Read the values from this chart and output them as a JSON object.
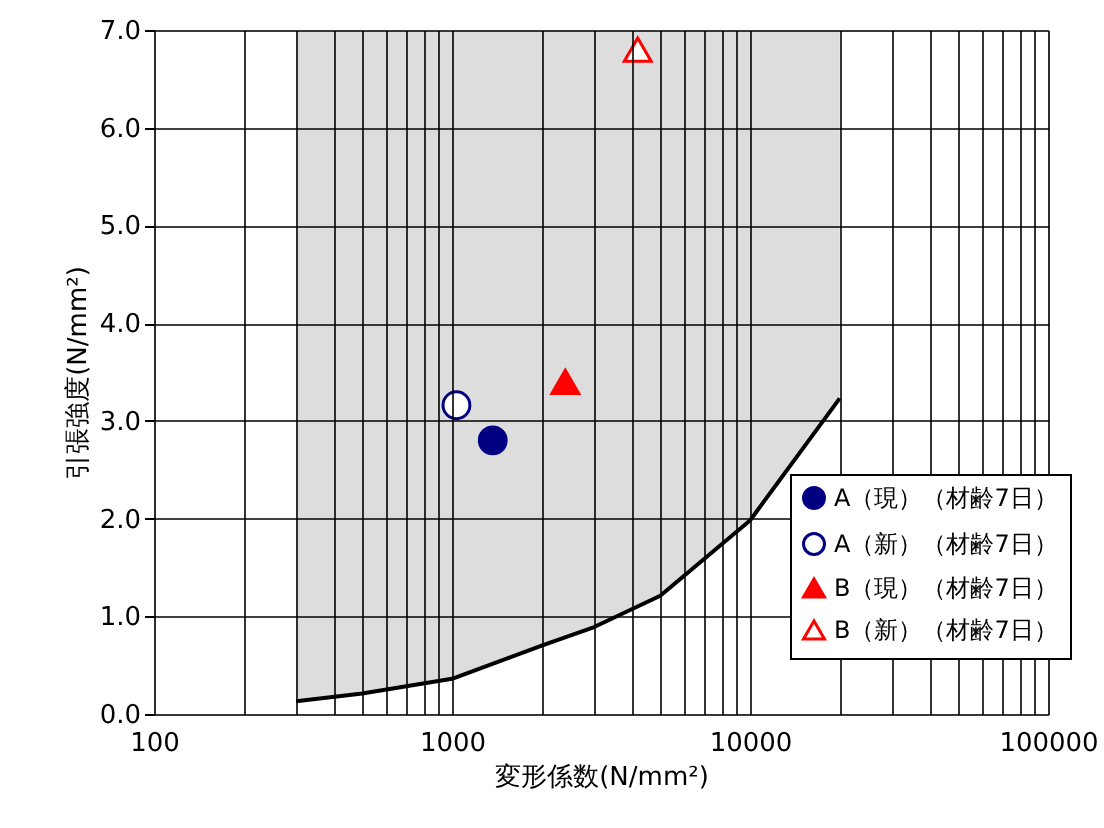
{
  "chart_data": {
    "type": "scatter",
    "xlabel": "変形係数(N/mm²)",
    "ylabel": "引張強度(N/mm²)",
    "log": "x",
    "xlim": [
      100,
      100000
    ],
    "ylim": [
      0,
      7
    ],
    "xticks": [
      100,
      {
        "value": 200,
        "label": null
      },
      {
        "value": 300,
        "label": null
      },
      {
        "value": 400,
        "label": null
      },
      {
        "value": 500,
        "label": null
      },
      {
        "value": 600,
        "label": null
      },
      {
        "value": 700,
        "label": null
      },
      {
        "value": 800,
        "label": null
      },
      {
        "value": 900,
        "label": null
      },
      1000,
      {
        "value": 2000,
        "label": null
      },
      {
        "value": 3000,
        "label": null
      },
      {
        "value": 4000,
        "label": null
      },
      {
        "value": 5000,
        "label": null
      },
      {
        "value": 6000,
        "label": null
      },
      {
        "value": 7000,
        "label": null
      },
      {
        "value": 8000,
        "label": null
      },
      {
        "value": 9000,
        "label": null
      },
      10000,
      {
        "value": 20000,
        "label": null
      },
      {
        "value": 30000,
        "label": null
      },
      {
        "value": 40000,
        "label": null
      },
      {
        "value": 50000,
        "label": null
      },
      {
        "value": 60000,
        "label": null
      },
      {
        "value": 70000,
        "label": null
      },
      {
        "value": 80000,
        "label": null
      },
      {
        "value": 90000,
        "label": null
      },
      100000
    ],
    "yticks": [
      {
        "value": 0,
        "label": "0.0"
      },
      {
        "value": 1,
        "label": "1.0"
      },
      {
        "value": 2,
        "label": "2.0"
      },
      {
        "value": 3,
        "label": "3.0"
      },
      {
        "value": 4,
        "label": "4.0"
      },
      {
        "value": 5,
        "label": "5.0"
      },
      {
        "value": 6,
        "label": "6.0"
      },
      {
        "value": 7,
        "label": "7.0"
      }
    ],
    "grid": true,
    "legend": "bottom right",
    "bands": [
      {
        "axis": "x",
        "from": 300,
        "to": 20000,
        "color": "#d4d4d4"
      }
    ],
    "series": [
      {
        "type": "line",
        "color": "#000000",
        "marker": "none",
        "x": [
          300,
          500,
          1000,
          2000,
          3000,
          5000,
          10000,
          20000
        ],
        "values": [
          0.13,
          0.21,
          0.36,
          0.7,
          0.89,
          1.21,
          1.98,
          3.23
        ]
      },
      {
        "name": "A（現）（材齢7日）",
        "color": "#000080",
        "marker": "circle",
        "x": [
          1370
        ],
        "values": [
          2.8
        ]
      },
      {
        "name": "A（新）（材齢7日）",
        "color": "#000080",
        "colors": [
          "#ffffff"
        ],
        "marker": "circle",
        "x": [
          1035
        ],
        "values": [
          3.16
        ]
      },
      {
        "name": "B（現）（材齢7日）",
        "color": "#ff0000",
        "marker": "triangle",
        "x": [
          2400
        ],
        "values": [
          3.4
        ]
      },
      {
        "name": "B（新）（材齢7日）",
        "color": "#ff0000",
        "colors": [
          "#ffffff"
        ],
        "marker": "triangle",
        "x": [
          4200
        ],
        "values": [
          6.8
        ]
      }
    ]
  }
}
